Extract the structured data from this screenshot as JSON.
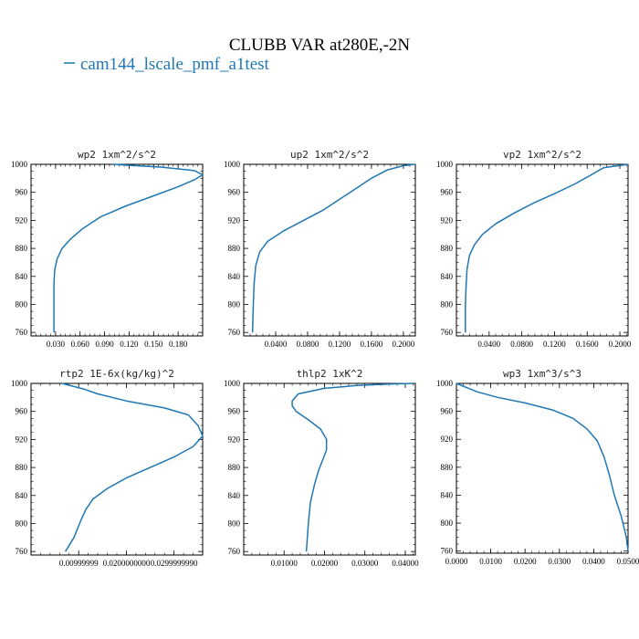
{
  "figure": {
    "title": "CLUBB VAR at280E,-2N",
    "legend": [
      {
        "label": "cam144_lscale_pmf_a1test",
        "color": "#1f77b4"
      }
    ]
  },
  "chart_data": [
    {
      "type": "line",
      "title": "wp2   1xm^2/s^2",
      "ylim": [
        1000,
        755
      ],
      "yticks": [
        760,
        800,
        840,
        880,
        920,
        960,
        1000
      ],
      "xlim": [
        0.0,
        0.21
      ],
      "xticks": [
        0.03,
        0.06,
        0.09,
        0.12,
        0.15,
        0.18
      ],
      "xtick_labels": [
        "0.030",
        "0.060",
        "0.090",
        "0.120",
        "0.150",
        "0.180"
      ],
      "series": [
        {
          "color": "#1f77b4",
          "x": [
            0.028,
            0.028,
            0.028,
            0.029,
            0.032,
            0.038,
            0.048,
            0.063,
            0.085,
            0.115,
            0.15,
            0.18,
            0.2,
            0.21,
            0.2,
            0.16,
            0.1
          ],
          "y": [
            760,
            800,
            830,
            850,
            865,
            880,
            893,
            908,
            925,
            940,
            955,
            968,
            978,
            985,
            991,
            996,
            1000
          ]
        }
      ]
    },
    {
      "type": "line",
      "title": "up2   1xm^2/s^2",
      "ylim": [
        1000,
        755
      ],
      "yticks": [
        760,
        800,
        840,
        880,
        920,
        960,
        1000
      ],
      "xlim": [
        0.0,
        0.215
      ],
      "xticks": [
        0.04,
        0.08,
        0.12,
        0.16,
        0.2
      ],
      "xtick_labels": [
        "0.0400",
        "0.0800",
        "0.1200",
        "0.1600",
        "0.2000"
      ],
      "series": [
        {
          "color": "#1f77b4",
          "x": [
            0.011,
            0.012,
            0.013,
            0.015,
            0.02,
            0.03,
            0.05,
            0.075,
            0.1,
            0.12,
            0.14,
            0.16,
            0.18,
            0.2,
            0.215
          ],
          "y": [
            760,
            800,
            830,
            855,
            875,
            890,
            905,
            920,
            935,
            950,
            965,
            980,
            992,
            998,
            1000
          ]
        }
      ]
    },
    {
      "type": "line",
      "title": "vp2   1xm^2/s^2",
      "ylim": [
        1000,
        755
      ],
      "yticks": [
        760,
        800,
        840,
        880,
        920,
        960,
        1000
      ],
      "xlim": [
        0.0,
        0.21
      ],
      "xticks": [
        0.04,
        0.08,
        0.12,
        0.16,
        0.2
      ],
      "xtick_labels": [
        "0.0400",
        "0.0800",
        "0.1200",
        "0.1600",
        "0.2000"
      ],
      "series": [
        {
          "color": "#1f77b4",
          "x": [
            0.011,
            0.011,
            0.012,
            0.013,
            0.016,
            0.022,
            0.032,
            0.048,
            0.07,
            0.095,
            0.12,
            0.145,
            0.165,
            0.18,
            0.21
          ],
          "y": [
            760,
            800,
            830,
            850,
            870,
            885,
            900,
            915,
            930,
            945,
            958,
            972,
            985,
            995,
            1000
          ]
        }
      ]
    },
    {
      "type": "line",
      "title": "rtp2   1E-6x(kg/kg)^2",
      "ylim": [
        1000,
        755
      ],
      "yticks": [
        760,
        800,
        840,
        880,
        920,
        960,
        1000
      ],
      "xlim": [
        0.0,
        0.036
      ],
      "xticks": [
        0.01,
        0.02,
        0.03
      ],
      "xtick_labels": [
        "0.00999999",
        "0.0200000000",
        "0.0299999990"
      ],
      "series": [
        {
          "color": "#1f77b4",
          "x": [
            0.0072,
            0.009,
            0.0105,
            0.0115,
            0.013,
            0.016,
            0.02,
            0.025,
            0.03,
            0.034,
            0.036,
            0.035,
            0.033,
            0.028,
            0.02,
            0.014,
            0.011,
            0.0065
          ],
          "y": [
            760,
            780,
            805,
            820,
            835,
            850,
            865,
            880,
            895,
            910,
            925,
            940,
            955,
            965,
            975,
            985,
            992,
            1000
          ]
        }
      ]
    },
    {
      "type": "line",
      "title": "thlp2   1xK^2",
      "ylim": [
        1000,
        755
      ],
      "yticks": [
        760,
        800,
        840,
        880,
        920,
        960,
        1000
      ],
      "xlim": [
        0.0,
        0.0425
      ],
      "xticks": [
        0.01,
        0.02,
        0.03,
        0.04
      ],
      "xtick_labels": [
        "0.01000",
        "0.02000",
        "0.03000",
        "0.04000"
      ],
      "series": [
        {
          "color": "#1f77b4",
          "x": [
            0.0155,
            0.016,
            0.0165,
            0.0175,
            0.0185,
            0.0195,
            0.0205,
            0.0205,
            0.019,
            0.016,
            0.013,
            0.012,
            0.012,
            0.0135,
            0.02,
            0.028,
            0.036,
            0.042
          ],
          "y": [
            760,
            800,
            830,
            855,
            875,
            890,
            905,
            920,
            935,
            948,
            960,
            968,
            975,
            985,
            993,
            997,
            999,
            1000
          ]
        }
      ]
    },
    {
      "type": "line",
      "title": "wp3   1xm^3/s^3",
      "ylim": [
        1000,
        757
      ],
      "yticks": [
        760,
        800,
        840,
        880,
        920,
        960,
        1000
      ],
      "xlim": [
        0.0,
        0.05
      ],
      "xticks": [
        0.0,
        0.01,
        0.02,
        0.03,
        0.04,
        0.05
      ],
      "xtick_labels": [
        "0.0000",
        "0.0100",
        "0.0200",
        "0.0300",
        "0.0400",
        "0.0500"
      ],
      "series": [
        {
          "color": "#1f77b4",
          "x": [
            0.05,
            0.0495,
            0.048,
            0.046,
            0.0445,
            0.043,
            0.041,
            0.038,
            0.034,
            0.028,
            0.02,
            0.012,
            0.006,
            0.003,
            0.0
          ],
          "y": [
            760,
            780,
            810,
            840,
            870,
            895,
            918,
            935,
            950,
            962,
            972,
            980,
            988,
            994,
            1000
          ]
        }
      ]
    }
  ]
}
